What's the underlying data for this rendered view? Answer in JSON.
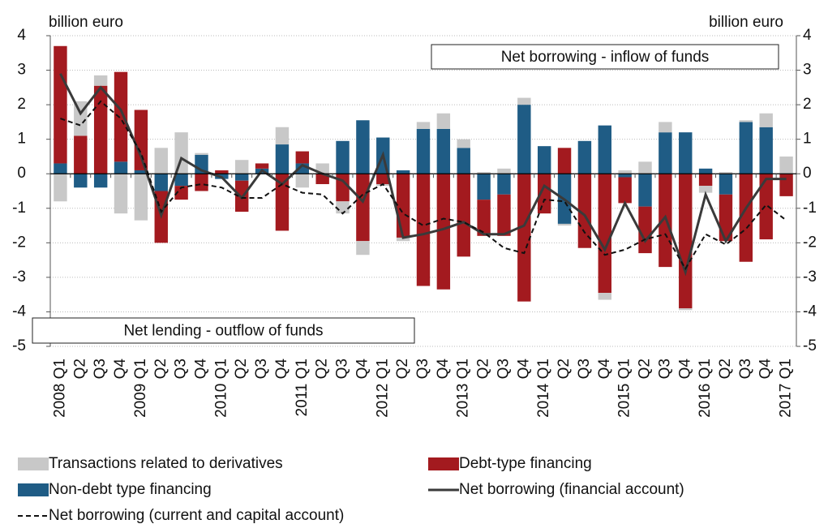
{
  "chart_data": {
    "type": "bar",
    "axis_label_left": "billion euro",
    "axis_label_right": "billion euro",
    "annotations": [
      "Net borrowing - inflow of funds",
      "Net lending - outflow of funds"
    ],
    "categories": [
      "2008 Q1",
      "Q2",
      "Q3",
      "Q4",
      "2009 Q1",
      "Q2",
      "Q3",
      "Q4",
      "2010 Q1",
      "Q2",
      "Q3",
      "Q4",
      "2011 Q1",
      "Q2",
      "Q3",
      "Q4",
      "2012 Q1",
      "Q2",
      "Q3",
      "Q4",
      "2013 Q1",
      "Q2",
      "Q3",
      "Q4",
      "2014 Q1",
      "Q2",
      "Q3",
      "Q4",
      "2015 Q1",
      "Q2",
      "Q3",
      "Q4",
      "2016 Q1",
      "Q2",
      "Q3",
      "Q4",
      "2017 Q1"
    ],
    "series": [
      {
        "name": "Non-debt type financing",
        "kind": "bar",
        "color": "#1f5c85",
        "values": [
          0.3,
          -0.4,
          -0.4,
          0.35,
          0.1,
          -0.5,
          -0.35,
          0.55,
          -0.15,
          -0.2,
          0.15,
          0.85,
          0.3,
          0.0,
          0.95,
          1.55,
          1.05,
          0.1,
          1.3,
          1.3,
          0.75,
          -0.75,
          -0.6,
          2.0,
          0.8,
          -1.45,
          0.95,
          1.4,
          -0.1,
          -0.95,
          1.2,
          1.2,
          0.15,
          -0.6,
          1.5,
          1.35,
          0.0
        ]
      },
      {
        "name": "Debt-type financing",
        "kind": "bar",
        "color": "#a31a1f",
        "values": [
          3.4,
          1.1,
          2.55,
          2.6,
          1.75,
          -1.5,
          -0.4,
          -0.5,
          0.1,
          -0.9,
          0.15,
          -1.65,
          0.35,
          -0.3,
          -0.8,
          -1.95,
          -0.3,
          -1.85,
          -3.25,
          -3.35,
          -2.4,
          -1.05,
          -1.2,
          -3.7,
          -1.15,
          0.75,
          -2.15,
          -3.45,
          -0.75,
          -1.35,
          -2.7,
          -3.9,
          -0.35,
          -1.35,
          -2.55,
          -1.9,
          -0.65
        ]
      },
      {
        "name": "Transactions related to derivatives",
        "kind": "bar",
        "color": "#c8c8c8",
        "values": [
          -0.8,
          1.0,
          0.3,
          -1.15,
          -1.35,
          0.75,
          1.2,
          0.05,
          0.0,
          0.4,
          0.0,
          0.5,
          -0.4,
          0.3,
          -0.35,
          -0.4,
          -0.05,
          -0.1,
          0.2,
          0.45,
          0.25,
          0.05,
          0.15,
          0.2,
          0.0,
          -0.05,
          0.0,
          -0.2,
          0.1,
          0.35,
          0.3,
          -0.05,
          -0.2,
          0.05,
          0.05,
          0.4,
          0.5
        ]
      },
      {
        "name": "Net borrowing (financial account)",
        "kind": "line",
        "dash": false,
        "color": "#3a3a3a",
        "values": [
          2.9,
          1.75,
          2.5,
          1.85,
          0.5,
          -1.2,
          0.45,
          0.1,
          -0.1,
          -0.7,
          0.1,
          -0.3,
          0.25,
          0.0,
          -0.2,
          -0.8,
          0.55,
          -1.85,
          -1.75,
          -1.6,
          -1.4,
          -1.75,
          -1.75,
          -1.5,
          -0.35,
          -0.75,
          -1.2,
          -2.2,
          -0.85,
          -1.95,
          -1.25,
          -2.85,
          -0.6,
          -1.95,
          -1.0,
          -0.15,
          -0.15
        ]
      },
      {
        "name": "Net borrowing (current and capital account)",
        "kind": "line",
        "dash": true,
        "color": "#111111",
        "values": [
          1.6,
          1.4,
          2.1,
          1.6,
          0.6,
          -1.1,
          -0.4,
          -0.3,
          -0.4,
          -0.7,
          -0.7,
          -0.3,
          -0.55,
          -0.6,
          -1.15,
          -0.6,
          -0.3,
          -1.15,
          -1.5,
          -1.3,
          -1.4,
          -1.7,
          -2.15,
          -2.3,
          -0.75,
          -0.8,
          -1.7,
          -2.35,
          -2.2,
          -1.9,
          -1.75,
          -2.75,
          -1.75,
          -2.05,
          -1.6,
          -0.9,
          -1.35
        ]
      }
    ],
    "legend_order": [
      2,
      1,
      0,
      3,
      4
    ],
    "ylim": [
      -5,
      4
    ],
    "yticks": [
      -5,
      -4,
      -3,
      -2,
      -1,
      0,
      1,
      2,
      3,
      4
    ],
    "grid": true
  }
}
